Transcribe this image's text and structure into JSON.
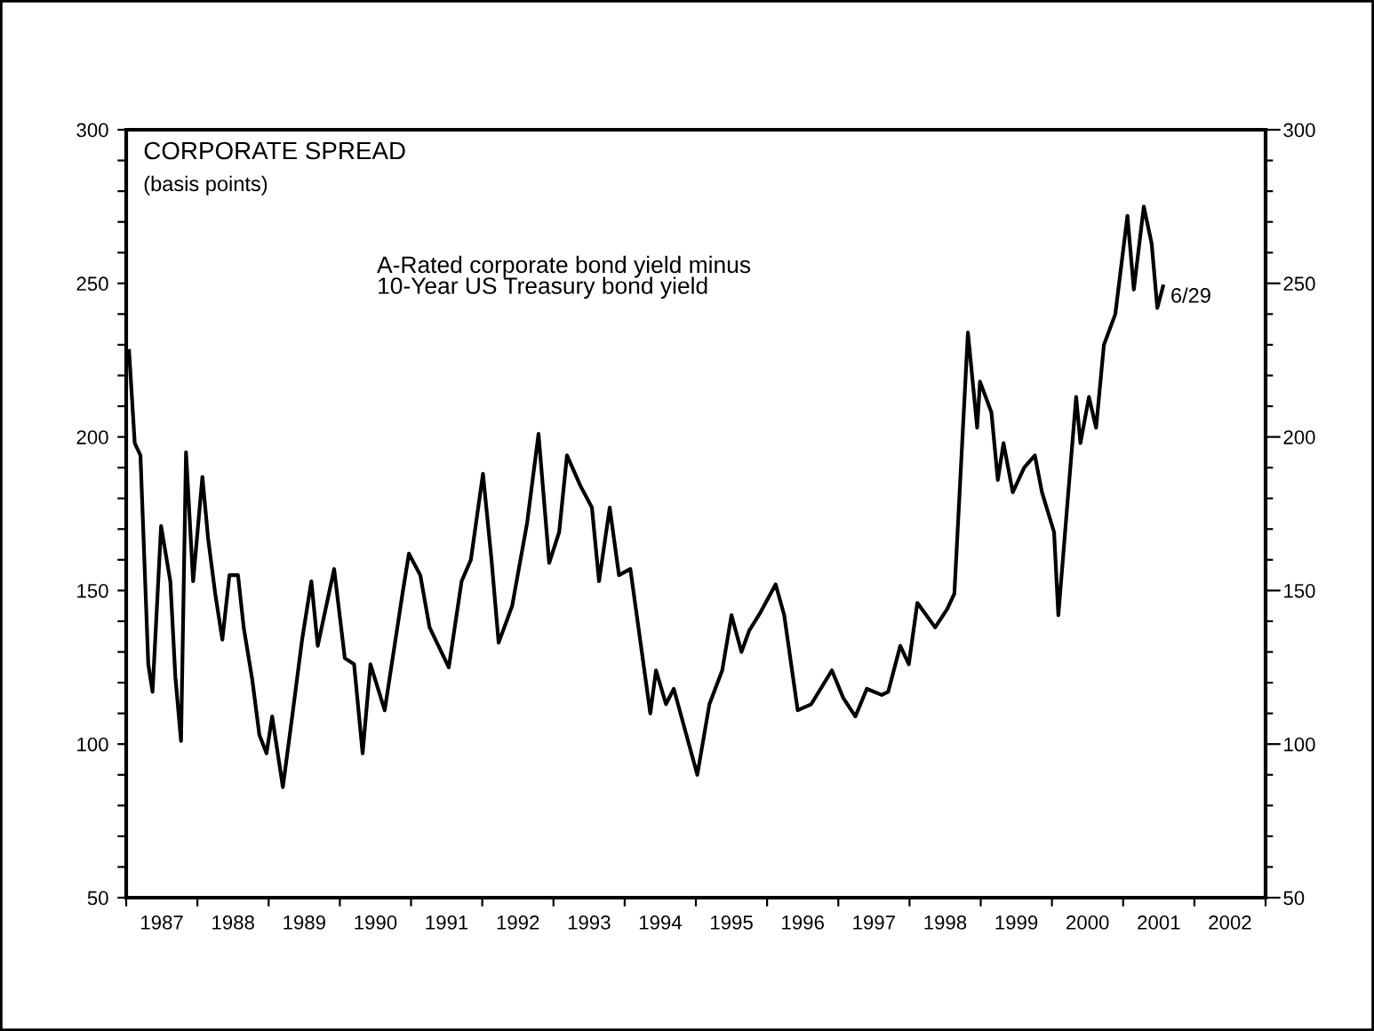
{
  "chart_data": {
    "type": "line",
    "title": "CORPORATE SPREAD",
    "subtitle": "(basis points)",
    "annotations": [
      "A-Rated corporate bond yield minus\n10-Year US Treasury bond yield",
      {
        "text": "6/29",
        "x": 2001.56,
        "y": 248.7
      }
    ],
    "series": [
      {
        "color": "#000000",
        "x": [
          1987.04,
          1987.12,
          1987.2,
          1987.31,
          1987.37,
          1987.49,
          1987.62,
          1987.69,
          1987.77,
          1987.84,
          1987.94,
          1988.07,
          1988.15,
          1988.25,
          1988.35,
          1988.45,
          1988.57,
          1988.65,
          1988.77,
          1988.87,
          1988.97,
          1989.05,
          1989.2,
          1989.32,
          1989.47,
          1989.6,
          1989.69,
          1989.92,
          1990.07,
          1990.2,
          1990.32,
          1990.43,
          1990.63,
          1990.88,
          1990.97,
          1991.13,
          1991.26,
          1991.53,
          1991.71,
          1991.84,
          1992.01,
          1992.13,
          1992.23,
          1992.42,
          1992.63,
          1992.79,
          1992.94,
          1993.08,
          1993.19,
          1993.38,
          1993.54,
          1993.64,
          1993.79,
          1993.92,
          1994.08,
          1994.36,
          1994.44,
          1994.58,
          1994.69,
          1995.02,
          1995.19,
          1995.37,
          1995.5,
          1995.64,
          1995.75,
          1995.91,
          1996.12,
          1996.24,
          1996.43,
          1996.62,
          1996.91,
          1997.07,
          1997.24,
          1997.4,
          1997.61,
          1997.7,
          1997.87,
          1997.99,
          1998.11,
          1998.36,
          1998.53,
          1998.63,
          1998.82,
          1998.95,
          1998.99,
          1999.15,
          1999.24,
          1999.32,
          1999.45,
          1999.61,
          1999.76,
          1999.86,
          2000.03,
          2000.09,
          2000.23,
          2000.34,
          2000.4,
          2000.52,
          2000.62,
          2000.73,
          2000.89,
          2001.06,
          2001.15,
          2001.29,
          2001.4,
          2001.48,
          2001.56
        ],
        "values": [
          228,
          198,
          194,
          126,
          117,
          171,
          153,
          122,
          101,
          195,
          153,
          187,
          167,
          149,
          134,
          155,
          155,
          138,
          121,
          103,
          97,
          109,
          86,
          107,
          134,
          153,
          132,
          157,
          128,
          126,
          97,
          126,
          111,
          149,
          162,
          155,
          138,
          125,
          153,
          160,
          188,
          160,
          133,
          145,
          172,
          201,
          159,
          169,
          194,
          184,
          177,
          153,
          177,
          155,
          157,
          110,
          124,
          113,
          118,
          90,
          113,
          124,
          142,
          130,
          137,
          143,
          152,
          142,
          111,
          113,
          124,
          115,
          109,
          118,
          116,
          117,
          132,
          126,
          146,
          138,
          144,
          149,
          234,
          203,
          218,
          208,
          186,
          198,
          182,
          190,
          194,
          182,
          169,
          142,
          182,
          213,
          198,
          213,
          203,
          230,
          240,
          272,
          248,
          275,
          263,
          242,
          249
        ]
      }
    ],
    "xlim": [
      1987,
      2003
    ],
    "xticks": [
      {
        "value": 1987,
        "label": null
      },
      {
        "value": 1987.5,
        "label": "1987"
      },
      {
        "value": 1988,
        "label": null
      },
      {
        "value": 1988.5,
        "label": "1988"
      },
      {
        "value": 1989,
        "label": null
      },
      {
        "value": 1989.5,
        "label": "1989"
      },
      {
        "value": 1990,
        "label": null
      },
      {
        "value": 1990.5,
        "label": "1990"
      },
      {
        "value": 1991,
        "label": null
      },
      {
        "value": 1991.5,
        "label": "1991"
      },
      {
        "value": 1992,
        "label": null
      },
      {
        "value": 1992.5,
        "label": "1992"
      },
      {
        "value": 1993,
        "label": null
      },
      {
        "value": 1993.5,
        "label": "1993"
      },
      {
        "value": 1994,
        "label": null
      },
      {
        "value": 1994.5,
        "label": "1994"
      },
      {
        "value": 1995,
        "label": null
      },
      {
        "value": 1995.5,
        "label": "1995"
      },
      {
        "value": 1996,
        "label": null
      },
      {
        "value": 1996.5,
        "label": "1996"
      },
      {
        "value": 1997,
        "label": null
      },
      {
        "value": 1997.5,
        "label": "1997"
      },
      {
        "value": 1998,
        "label": null
      },
      {
        "value": 1998.5,
        "label": "1998"
      },
      {
        "value": 1999,
        "label": null
      },
      {
        "value": 1999.5,
        "label": "1999"
      },
      {
        "value": 2000,
        "label": null
      },
      {
        "value": 2000.5,
        "label": "2000"
      },
      {
        "value": 2001,
        "label": null
      },
      {
        "value": 2001.5,
        "label": "2001"
      },
      {
        "value": 2002,
        "label": null
      },
      {
        "value": 2002.5,
        "label": "2002"
      },
      {
        "value": 2003,
        "label": null
      }
    ],
    "ylim": [
      50,
      300
    ],
    "yticks": [
      50,
      {
        "value": 60,
        "label": null
      },
      {
        "value": 70,
        "label": null
      },
      {
        "value": 80,
        "label": null
      },
      {
        "value": 90,
        "label": null
      },
      100,
      {
        "value": 110,
        "label": null
      },
      {
        "value": 120,
        "label": null
      },
      {
        "value": 130,
        "label": null
      },
      {
        "value": 140,
        "label": null
      },
      150,
      {
        "value": 160,
        "label": null
      },
      {
        "value": 170,
        "label": null
      },
      {
        "value": 180,
        "label": null
      },
      {
        "value": 190,
        "label": null
      },
      200,
      {
        "value": 210,
        "label": null
      },
      {
        "value": 220,
        "label": null
      },
      {
        "value": 230,
        "label": null
      },
      {
        "value": 240,
        "label": null
      },
      250,
      {
        "value": 260,
        "label": null
      },
      {
        "value": 270,
        "label": null
      },
      {
        "value": 280,
        "label": null
      },
      {
        "value": 290,
        "label": null
      },
      300
    ],
    "y2lim": [
      50,
      300
    ],
    "y2ticks": [
      50,
      {
        "value": 60,
        "label": null
      },
      {
        "value": 70,
        "label": null
      },
      {
        "value": 80,
        "label": null
      },
      {
        "value": 90,
        "label": null
      },
      100,
      {
        "value": 110,
        "label": null
      },
      {
        "value": 120,
        "label": null
      },
      {
        "value": 130,
        "label": null
      },
      {
        "value": 140,
        "label": null
      },
      150,
      {
        "value": 160,
        "label": null
      },
      {
        "value": 170,
        "label": null
      },
      {
        "value": 180,
        "label": null
      },
      {
        "value": 190,
        "label": null
      },
      200,
      {
        "value": 210,
        "label": null
      },
      {
        "value": 220,
        "label": null
      },
      {
        "value": 230,
        "label": null
      },
      {
        "value": 240,
        "label": null
      },
      250,
      {
        "value": 260,
        "label": null
      },
      {
        "value": 270,
        "label": null
      },
      {
        "value": 280,
        "label": null
      },
      {
        "value": 290,
        "label": null
      },
      300
    ],
    "grid": false,
    "legend": false,
    "marker": "none",
    "line_style": "solid"
  }
}
